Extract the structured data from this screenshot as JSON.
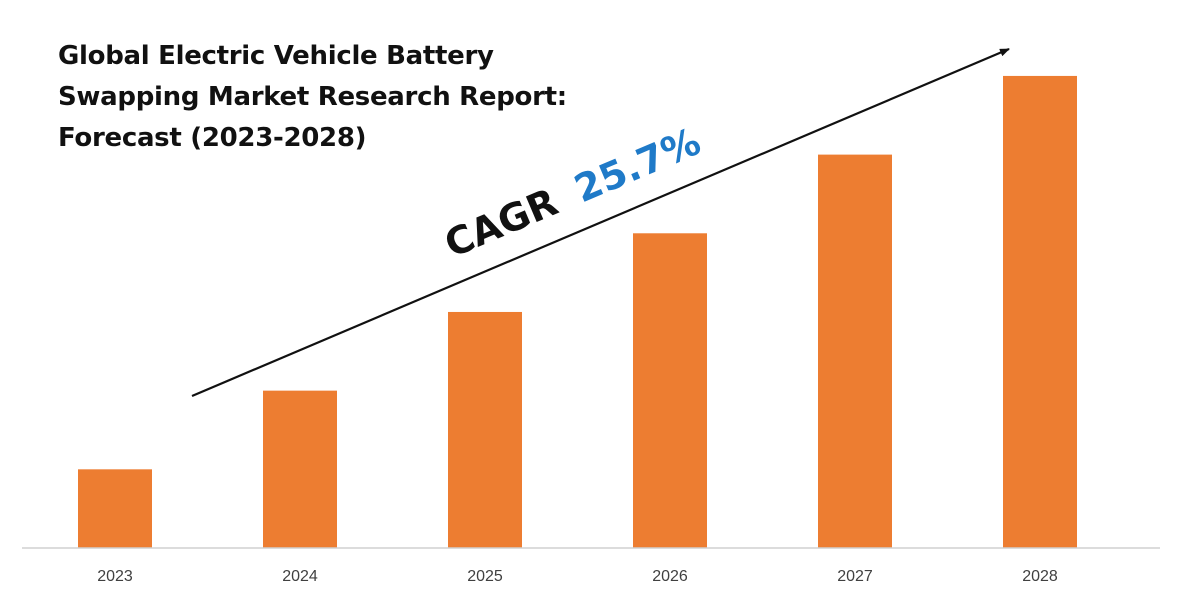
{
  "chart_data": {
    "type": "bar",
    "title_lines": [
      "Global Electric Vehicle Battery",
      "Swapping Market Research Report:",
      "Forecast (2023-2028)"
    ],
    "categories": [
      "2023",
      "2024",
      "2025",
      "2026",
      "2027",
      "2028"
    ],
    "values": [
      1,
      2,
      3,
      4,
      5,
      6
    ],
    "ylim": [
      0,
      6.05
    ],
    "xlabel": "",
    "ylabel": "",
    "grid": false,
    "bar_color": "#ED7D31",
    "annotation": {
      "prefix": "CAGR",
      "value": "25.7%",
      "prefix_color": "#111111",
      "value_color": "#1F7AC8"
    }
  }
}
